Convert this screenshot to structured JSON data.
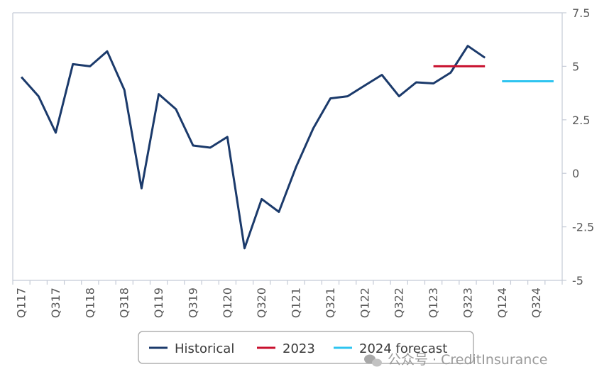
{
  "chart_data": {
    "type": "line",
    "x": [
      "Q117",
      "Q217",
      "Q317",
      "Q417",
      "Q118",
      "Q218",
      "Q318",
      "Q418",
      "Q119",
      "Q219",
      "Q319",
      "Q419",
      "Q120",
      "Q220",
      "Q320",
      "Q420",
      "Q121",
      "Q221",
      "Q321",
      "Q421",
      "Q122",
      "Q222",
      "Q322",
      "Q422",
      "Q123",
      "Q223",
      "Q323",
      "Q423",
      "Q124",
      "Q224",
      "Q324",
      "Q424"
    ],
    "x_tick_labels": [
      "Q117",
      "Q317",
      "Q118",
      "Q318",
      "Q119",
      "Q319",
      "Q120",
      "Q320",
      "Q121",
      "Q321",
      "Q122",
      "Q322",
      "Q123",
      "Q323",
      "Q124",
      "Q324"
    ],
    "ylim": [
      -5,
      7.5
    ],
    "y_ticks": [
      7.5,
      5,
      2.5,
      0,
      -2.5,
      -5
    ],
    "y_tick_labels": [
      "7.5",
      "5",
      "2.5",
      "0",
      "-2.5",
      "-5"
    ],
    "y_axis_side": "right",
    "grid": false,
    "legend_position": "bottom",
    "series": [
      {
        "name": "Historical",
        "color": "#1b3a6b",
        "values": [
          4.5,
          3.6,
          1.9,
          5.1,
          5.0,
          5.7,
          3.9,
          -0.7,
          3.7,
          3.0,
          1.3,
          1.2,
          1.7,
          -3.5,
          -1.2,
          -1.8,
          0.3,
          2.1,
          3.5,
          3.6,
          4.1,
          4.6,
          3.6,
          4.25,
          4.2,
          4.7,
          5.95,
          5.4,
          null,
          null,
          null,
          null
        ]
      },
      {
        "name": "2023",
        "color": "#c8102e",
        "values": [
          null,
          null,
          null,
          null,
          null,
          null,
          null,
          null,
          null,
          null,
          null,
          null,
          null,
          null,
          null,
          null,
          null,
          null,
          null,
          null,
          null,
          null,
          null,
          null,
          5.0,
          5.0,
          5.0,
          5.0,
          null,
          null,
          null,
          null
        ]
      },
      {
        "name": "2024 forecast",
        "color": "#2ec4f0",
        "values": [
          null,
          null,
          null,
          null,
          null,
          null,
          null,
          null,
          null,
          null,
          null,
          null,
          null,
          null,
          null,
          null,
          null,
          null,
          null,
          null,
          null,
          null,
          null,
          null,
          null,
          null,
          null,
          null,
          4.3,
          4.3,
          4.3,
          4.3
        ]
      }
    ]
  },
  "watermark": {
    "text": "公众号 · CreditInsurance",
    "icon": "wechat-icon"
  }
}
